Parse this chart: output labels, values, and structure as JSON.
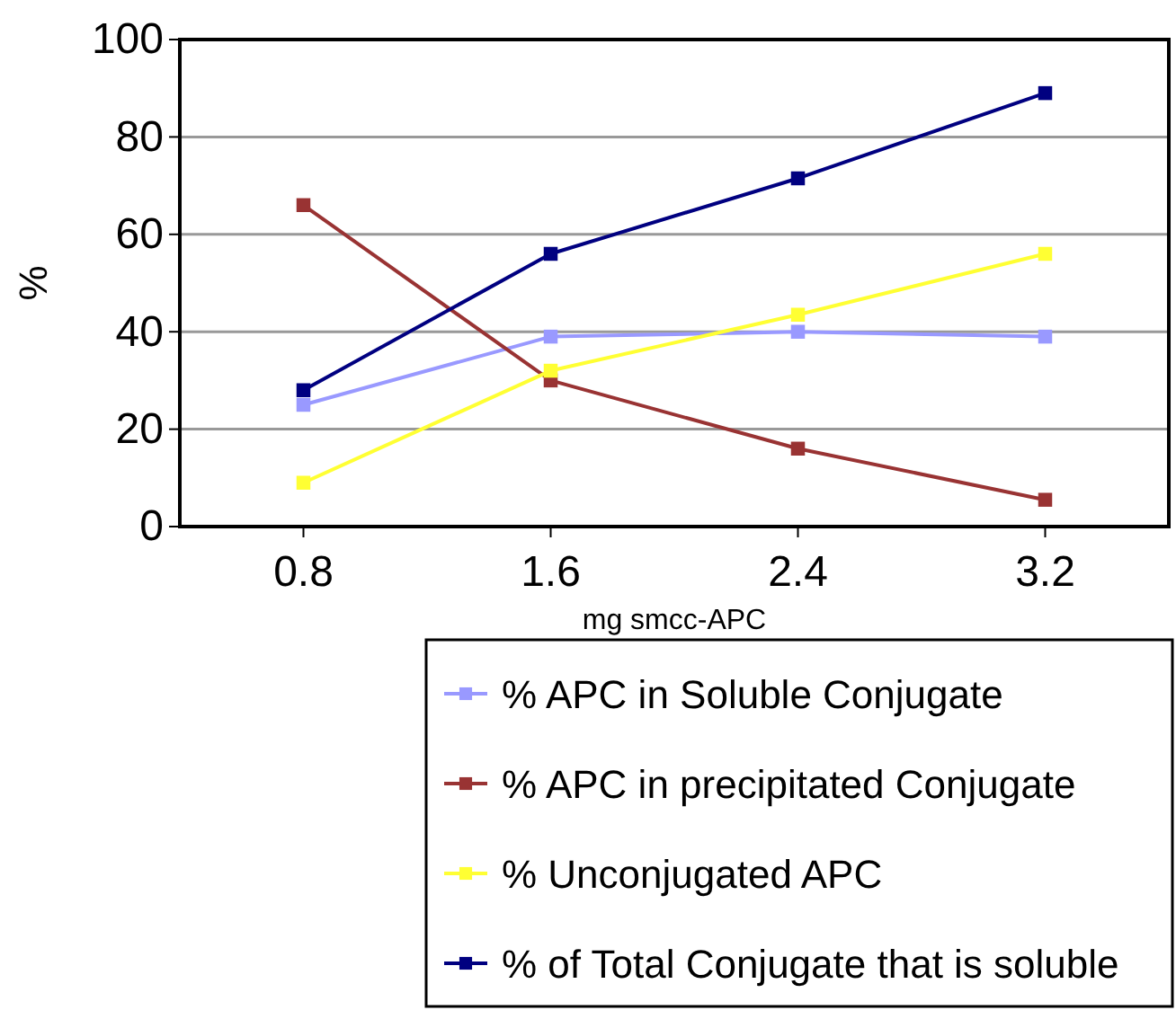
{
  "chart_data": {
    "type": "line",
    "xlabel": "mg smcc-APC",
    "ylabel": "%",
    "categories": [
      "0.8",
      "1.6",
      "2.4",
      "3.2"
    ],
    "series": [
      {
        "name": "% APC in Soluble Conjugate",
        "color": "#9999ff",
        "values": [
          25,
          39,
          40,
          39
        ]
      },
      {
        "name": "% APC in precipitated Conjugate",
        "color": "#993333",
        "values": [
          66,
          30,
          16,
          5.5
        ]
      },
      {
        "name": "% Unconjugated APC",
        "color": "#ffff33",
        "values": [
          9,
          32,
          43.5,
          56
        ]
      },
      {
        "name": "% of Total Conjugate that is soluble",
        "color": "#000080",
        "values": [
          28,
          56,
          71.5,
          89
        ]
      }
    ],
    "ylim": [
      0,
      100
    ],
    "yticks": [
      0,
      20,
      40,
      60,
      80,
      100
    ],
    "grid": "y",
    "legend": "bottom",
    "marker": "square",
    "line_style": "solid"
  }
}
